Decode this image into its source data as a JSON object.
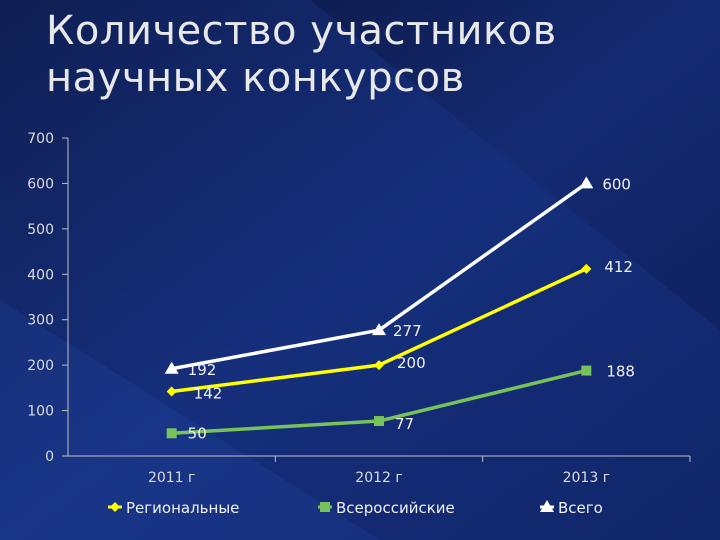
{
  "slide": {
    "title": "Количество участников научных конкурсов"
  },
  "colors": {
    "background": "#0d1a47",
    "series_1": "#ffff00",
    "series_2": "#77c25a",
    "series_3": "#ffffff",
    "axis": "#bfbfbf"
  },
  "chart_data": {
    "type": "line",
    "title": "",
    "xlabel": "",
    "ylabel": "",
    "categories": [
      "2011 г",
      "2012 г",
      "2013 г"
    ],
    "ylim": [
      0,
      700
    ],
    "yticks": [
      0,
      100,
      200,
      300,
      400,
      500,
      600,
      700
    ],
    "grid": false,
    "legend_position": "bottom",
    "series": [
      {
        "name": "Региональные",
        "values": [
          142,
          200,
          412
        ],
        "marker": "diamond",
        "color": "#ffff00"
      },
      {
        "name": "Всероссийские",
        "values": [
          50,
          77,
          188
        ],
        "marker": "square",
        "color": "#77c25a"
      },
      {
        "name": "Всего",
        "values": [
          192,
          277,
          600
        ],
        "marker": "triangle",
        "color": "#ffffff"
      }
    ]
  }
}
